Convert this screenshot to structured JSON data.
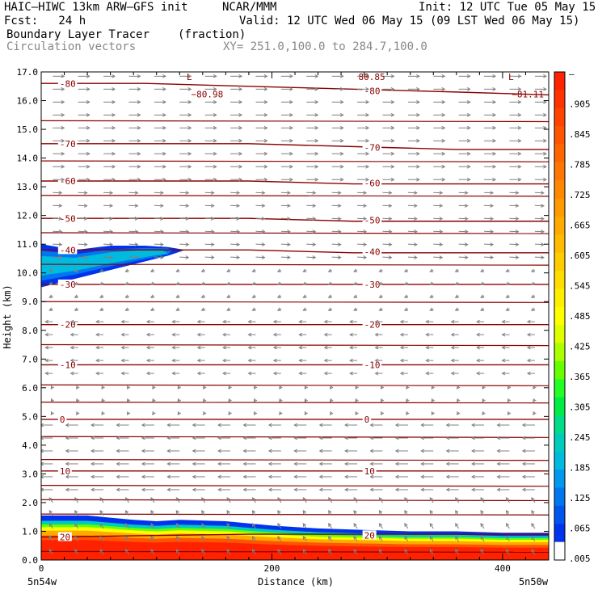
{
  "header": {
    "model": "HAIC–HIWC 13km ARW–GFS init",
    "org": "NCAR/MMM",
    "init": "Init: 12 UTC Tue 05 May 15",
    "fcst": "Fcst:   24 h",
    "valid": "Valid: 12 UTC Wed 06 May 15 (09 LST Wed 06 May 15)",
    "field": "Boundary Layer Tracer",
    "units": "(fraction)",
    "vectors": "Circulation vectors",
    "xsec": "XY= 251.0,100.0 to 284.7,100.0"
  },
  "colors": {
    "contour": "#8b0000",
    "vector": "#808080"
  },
  "chart_data": {
    "type": "heatmap",
    "xlabel": "Distance (km)",
    "ylabel": "Height (km)",
    "xlim": [
      0,
      440
    ],
    "ylim": [
      0,
      17
    ],
    "x_ticks": [
      0,
      200,
      400
    ],
    "y_ticks": [
      0.0,
      1.0,
      2.0,
      3.0,
      4.0,
      5.0,
      6.0,
      7.0,
      8.0,
      9.0,
      10.0,
      11.0,
      12.0,
      13.0,
      14.0,
      15.0,
      16.0,
      17.0
    ],
    "y_tick_labels": [
      "0.0",
      "1.0",
      "2.0",
      "3.0",
      "4.0",
      "5.0",
      "6.0",
      "7.0",
      "8.0",
      "9.0",
      "10.0",
      "11.0",
      "12.0",
      "13.0",
      "14.0",
      "15.0",
      "16.0",
      "17.0"
    ],
    "x_endpoints": {
      "left": "5n54w",
      "right": "5n50w"
    },
    "colorbar": {
      "labels": [
        "–",
        ".905",
        ".845",
        ".785",
        ".725",
        ".665",
        ".605",
        ".545",
        ".485",
        ".425",
        ".365",
        ".305",
        ".245",
        ".185",
        ".125",
        ".065",
        ".005"
      ],
      "colors": [
        "#ff2200",
        "#ff3300",
        "#ff4400",
        "#ff5500",
        "#ff6600",
        "#ff7700",
        "#ff8800",
        "#ff9900",
        "#ffaa00",
        "#ffbb00",
        "#ffcc00",
        "#ffdd00",
        "#ffee00",
        "#ffff00",
        "#ddff00",
        "#aaff00",
        "#66ff00",
        "#22ff22",
        "#00ee44",
        "#00dd88",
        "#00ccbb",
        "#00bbdd",
        "#0099ee",
        "#0077ee",
        "#0055ee",
        "#0033ee",
        "#ffffff"
      ]
    },
    "contours": [
      {
        "label": "-80",
        "y": [
          16.6,
          16.6,
          16.5,
          16.4,
          16.3,
          16.2
        ]
      },
      {
        "label": "-70",
        "y": [
          14.5,
          14.5,
          14.5,
          14.4,
          14.3,
          14.3
        ]
      },
      {
        "label": "-60",
        "y": [
          13.2,
          13.2,
          13.2,
          13.1,
          13.1,
          13.1
        ]
      },
      {
        "label": "-50",
        "y": [
          11.9,
          11.9,
          11.9,
          11.8,
          11.8,
          11.8
        ]
      },
      {
        "label": "-40",
        "y": [
          10.8,
          10.8,
          10.8,
          10.7,
          10.7,
          10.7
        ]
      },
      {
        "label": "-30",
        "y": [
          9.6,
          9.6,
          9.6,
          9.6,
          9.6,
          9.6
        ]
      },
      {
        "label": "-20",
        "y": [
          8.2,
          8.2,
          8.2,
          8.2,
          8.2,
          8.2
        ]
      },
      {
        "label": "-10",
        "y": [
          6.8,
          6.8,
          6.8,
          6.8,
          6.8,
          6.8
        ]
      },
      {
        "label": "0",
        "y": [
          4.9,
          4.9,
          4.9,
          4.9,
          4.9,
          4.9
        ]
      },
      {
        "label": "10",
        "y": [
          3.1,
          3.1,
          3.1,
          3.1,
          3.1,
          3.1
        ]
      },
      {
        "label": "20",
        "y": [
          0.8,
          0.85,
          0.9,
          0.9,
          0.9,
          0.9
        ]
      }
    ],
    "extra_isotherms": [
      15.3,
      13.9,
      12.7,
      11.4,
      10.3,
      9.0,
      7.5,
      6.1,
      5.5,
      4.3,
      3.5,
      2.6,
      2.1,
      1.6,
      0.3
    ],
    "contour_x": [
      0,
      90,
      180,
      270,
      360,
      440
    ],
    "annotations": [
      {
        "text": "L",
        "x": 126,
        "y": 17.0
      },
      {
        "text": "−80.98",
        "x": 130,
        "y": 16.4
      },
      {
        "text": "L",
        "x": 405,
        "y": 17.0
      },
      {
        "text": "−81.11",
        "x": 408,
        "y": 16.4
      },
      {
        "text": "80.85",
        "x": 275,
        "y": 17.0
      }
    ],
    "tracer": {
      "pbl_top": [
        1.55,
        1.55,
        1.4,
        1.35,
        1.4,
        1.35,
        1.2,
        1.1,
        1.05,
        1.0,
        1.0,
        0.95,
        0.95
      ],
      "pbl_x": [
        0,
        40,
        80,
        100,
        120,
        160,
        200,
        240,
        280,
        320,
        360,
        400,
        440
      ],
      "cirrus_top": [
        11.0,
        10.8,
        10.95,
        10.95,
        10.9,
        10.8
      ],
      "cirrus_bot": [
        9.5,
        9.8,
        10.1,
        10.4,
        10.6,
        10.8
      ],
      "cirrus_x": [
        0,
        30,
        60,
        90,
        110,
        125
      ]
    }
  }
}
